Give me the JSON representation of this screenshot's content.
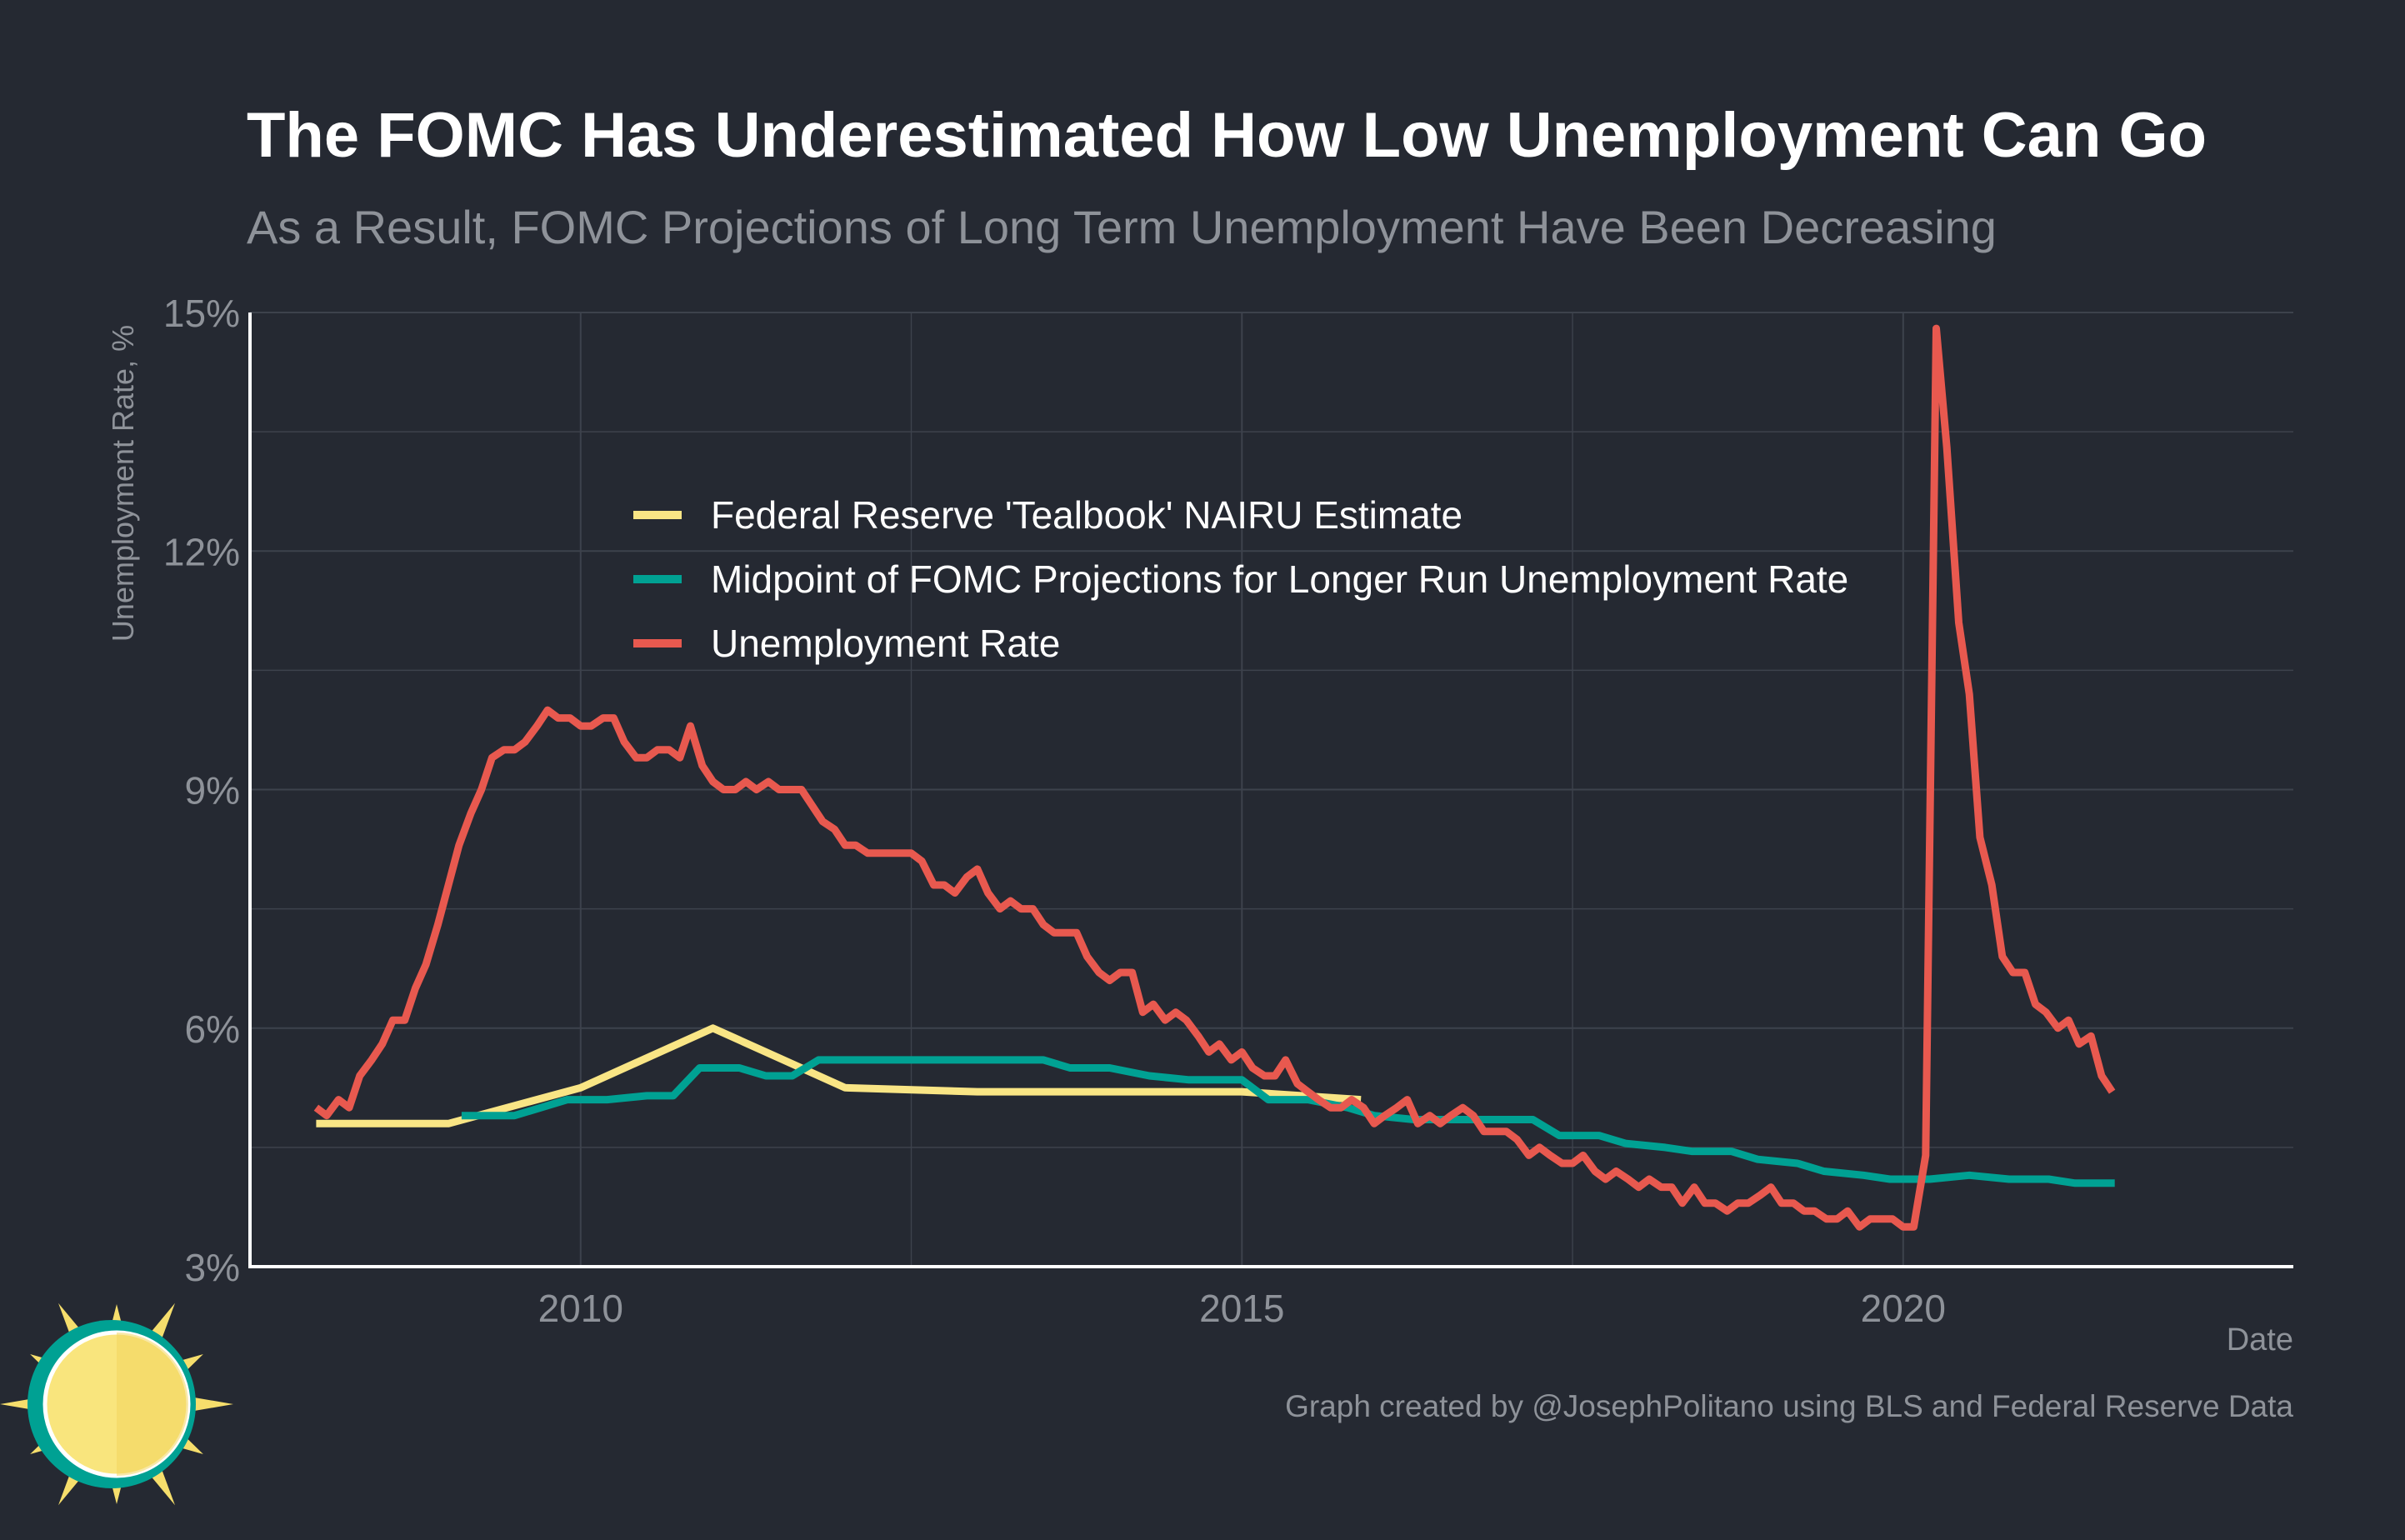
{
  "title": "The FOMC Has Underestimated How Low Unemployment Can Go",
  "subtitle": "As a Result, FOMC Projections of Long Term Unemployment Have Been Decreasing",
  "credit": "Graph created by @JosephPolitano using BLS and Federal Reserve Data",
  "colors": {
    "background": "#252932",
    "grid": "#3d424c",
    "axis": "#ffffff",
    "text_muted": "#8e9299",
    "title": "#ffffff",
    "tealbook": "#f9e585",
    "fomc": "#00a193",
    "unemployment": "#e8594f"
  },
  "logo": {
    "name": "sun-logo-icon"
  },
  "chart_data": {
    "type": "line",
    "title": "The FOMC Has Underestimated How Low Unemployment Can Go",
    "subtitle": "As a Result, FOMC Projections of Long Term Unemployment Have Been Decreasing",
    "xlabel": "Date",
    "ylabel": "Unemployment Rate, %",
    "xlim": [
      2007.5,
      2022.95
    ],
    "ylim": [
      3,
      15
    ],
    "x_ticks": [
      2010,
      2015,
      2020
    ],
    "x_tick_labels": [
      "2010",
      "2015",
      "2020"
    ],
    "y_ticks": [
      3,
      6,
      9,
      12,
      15
    ],
    "y_tick_labels": [
      "3%",
      "6%",
      "9%",
      "12%",
      "15%"
    ],
    "grid": true,
    "legend_position": "top-center",
    "series": [
      {
        "name": "Federal Reserve 'Tealbook' NAIRU Estimate",
        "color": "#f9e585",
        "points": [
          [
            2008.0,
            4.8
          ],
          [
            2009.0,
            4.8
          ],
          [
            2010.0,
            5.25
          ],
          [
            2011.0,
            6.0
          ],
          [
            2012.0,
            5.25
          ],
          [
            2013.0,
            5.2
          ],
          [
            2014.0,
            5.2
          ],
          [
            2015.0,
            5.2
          ],
          [
            2015.9,
            5.1
          ]
        ]
      },
      {
        "name": "Midpoint of FOMC Projections for Longer Run Unemployment Rate",
        "color": "#00a193",
        "points": [
          [
            2009.1,
            4.9
          ],
          [
            2009.5,
            4.9
          ],
          [
            2009.9,
            5.1
          ],
          [
            2010.2,
            5.1
          ],
          [
            2010.5,
            5.15
          ],
          [
            2010.7,
            5.15
          ],
          [
            2010.9,
            5.5
          ],
          [
            2011.2,
            5.5
          ],
          [
            2011.4,
            5.4
          ],
          [
            2011.6,
            5.4
          ],
          [
            2011.8,
            5.6
          ],
          [
            2012.2,
            5.6
          ],
          [
            2012.6,
            5.6
          ],
          [
            2013.0,
            5.6
          ],
          [
            2013.5,
            5.6
          ],
          [
            2013.7,
            5.5
          ],
          [
            2014.0,
            5.5
          ],
          [
            2014.3,
            5.4
          ],
          [
            2014.6,
            5.35
          ],
          [
            2014.9,
            5.35
          ],
          [
            2015.0,
            5.35
          ],
          [
            2015.2,
            5.1
          ],
          [
            2015.5,
            5.1
          ],
          [
            2015.8,
            5.0
          ],
          [
            2016.0,
            4.9
          ],
          [
            2016.3,
            4.85
          ],
          [
            2016.6,
            4.85
          ],
          [
            2016.9,
            4.85
          ],
          [
            2017.2,
            4.85
          ],
          [
            2017.4,
            4.65
          ],
          [
            2017.7,
            4.65
          ],
          [
            2017.9,
            4.55
          ],
          [
            2018.2,
            4.5
          ],
          [
            2018.4,
            4.45
          ],
          [
            2018.7,
            4.45
          ],
          [
            2018.9,
            4.35
          ],
          [
            2019.2,
            4.3
          ],
          [
            2019.4,
            4.2
          ],
          [
            2019.7,
            4.15
          ],
          [
            2019.9,
            4.1
          ],
          [
            2020.2,
            4.1
          ],
          [
            2020.5,
            4.15
          ],
          [
            2020.8,
            4.1
          ],
          [
            2021.1,
            4.1
          ],
          [
            2021.3,
            4.05
          ],
          [
            2021.6,
            4.05
          ]
        ]
      },
      {
        "name": "Unemployment Rate",
        "color": "#e8594f",
        "points": [
          [
            2008.0,
            5.0
          ],
          [
            2008.08,
            4.9
          ],
          [
            2008.17,
            5.1
          ],
          [
            2008.25,
            5.0
          ],
          [
            2008.33,
            5.4
          ],
          [
            2008.42,
            5.6
          ],
          [
            2008.5,
            5.8
          ],
          [
            2008.58,
            6.1
          ],
          [
            2008.67,
            6.1
          ],
          [
            2008.75,
            6.5
          ],
          [
            2008.83,
            6.8
          ],
          [
            2008.92,
            7.3
          ],
          [
            2009.0,
            7.8
          ],
          [
            2009.08,
            8.3
          ],
          [
            2009.17,
            8.7
          ],
          [
            2009.25,
            9.0
          ],
          [
            2009.33,
            9.4
          ],
          [
            2009.42,
            9.5
          ],
          [
            2009.5,
            9.5
          ],
          [
            2009.58,
            9.6
          ],
          [
            2009.67,
            9.8
          ],
          [
            2009.75,
            10.0
          ],
          [
            2009.83,
            9.9
          ],
          [
            2009.92,
            9.9
          ],
          [
            2010.0,
            9.8
          ],
          [
            2010.08,
            9.8
          ],
          [
            2010.17,
            9.9
          ],
          [
            2010.25,
            9.9
          ],
          [
            2010.33,
            9.6
          ],
          [
            2010.42,
            9.4
          ],
          [
            2010.5,
            9.4
          ],
          [
            2010.58,
            9.5
          ],
          [
            2010.67,
            9.5
          ],
          [
            2010.75,
            9.4
          ],
          [
            2010.83,
            9.8
          ],
          [
            2010.92,
            9.3
          ],
          [
            2011.0,
            9.1
          ],
          [
            2011.08,
            9.0
          ],
          [
            2011.17,
            9.0
          ],
          [
            2011.25,
            9.1
          ],
          [
            2011.33,
            9.0
          ],
          [
            2011.42,
            9.1
          ],
          [
            2011.5,
            9.0
          ],
          [
            2011.58,
            9.0
          ],
          [
            2011.67,
            9.0
          ],
          [
            2011.75,
            8.8
          ],
          [
            2011.83,
            8.6
          ],
          [
            2011.92,
            8.5
          ],
          [
            2012.0,
            8.3
          ],
          [
            2012.08,
            8.3
          ],
          [
            2012.17,
            8.2
          ],
          [
            2012.25,
            8.2
          ],
          [
            2012.33,
            8.2
          ],
          [
            2012.42,
            8.2
          ],
          [
            2012.5,
            8.2
          ],
          [
            2012.58,
            8.1
          ],
          [
            2012.67,
            7.8
          ],
          [
            2012.75,
            7.8
          ],
          [
            2012.83,
            7.7
          ],
          [
            2012.92,
            7.9
          ],
          [
            2013.0,
            8.0
          ],
          [
            2013.08,
            7.7
          ],
          [
            2013.17,
            7.5
          ],
          [
            2013.25,
            7.6
          ],
          [
            2013.33,
            7.5
          ],
          [
            2013.42,
            7.5
          ],
          [
            2013.5,
            7.3
          ],
          [
            2013.58,
            7.2
          ],
          [
            2013.67,
            7.2
          ],
          [
            2013.75,
            7.2
          ],
          [
            2013.83,
            6.9
          ],
          [
            2013.92,
            6.7
          ],
          [
            2014.0,
            6.6
          ],
          [
            2014.08,
            6.7
          ],
          [
            2014.17,
            6.7
          ],
          [
            2014.25,
            6.2
          ],
          [
            2014.33,
            6.3
          ],
          [
            2014.42,
            6.1
          ],
          [
            2014.5,
            6.2
          ],
          [
            2014.58,
            6.1
          ],
          [
            2014.67,
            5.9
          ],
          [
            2014.75,
            5.7
          ],
          [
            2014.83,
            5.8
          ],
          [
            2014.92,
            5.6
          ],
          [
            2015.0,
            5.7
          ],
          [
            2015.08,
            5.5
          ],
          [
            2015.17,
            5.4
          ],
          [
            2015.25,
            5.4
          ],
          [
            2015.33,
            5.6
          ],
          [
            2015.42,
            5.3
          ],
          [
            2015.5,
            5.2
          ],
          [
            2015.58,
            5.1
          ],
          [
            2015.67,
            5.0
          ],
          [
            2015.75,
            5.0
          ],
          [
            2015.83,
            5.1
          ],
          [
            2015.92,
            5.0
          ],
          [
            2016.0,
            4.8
          ],
          [
            2016.08,
            4.9
          ],
          [
            2016.17,
            5.0
          ],
          [
            2016.25,
            5.1
          ],
          [
            2016.33,
            4.8
          ],
          [
            2016.42,
            4.9
          ],
          [
            2016.5,
            4.8
          ],
          [
            2016.58,
            4.9
          ],
          [
            2016.67,
            5.0
          ],
          [
            2016.75,
            4.9
          ],
          [
            2016.83,
            4.7
          ],
          [
            2016.92,
            4.7
          ],
          [
            2017.0,
            4.7
          ],
          [
            2017.08,
            4.6
          ],
          [
            2017.17,
            4.4
          ],
          [
            2017.25,
            4.5
          ],
          [
            2017.33,
            4.4
          ],
          [
            2017.42,
            4.3
          ],
          [
            2017.5,
            4.3
          ],
          [
            2017.58,
            4.4
          ],
          [
            2017.67,
            4.2
          ],
          [
            2017.75,
            4.1
          ],
          [
            2017.83,
            4.2
          ],
          [
            2017.92,
            4.1
          ],
          [
            2018.0,
            4.0
          ],
          [
            2018.08,
            4.1
          ],
          [
            2018.17,
            4.0
          ],
          [
            2018.25,
            4.0
          ],
          [
            2018.33,
            3.8
          ],
          [
            2018.42,
            4.0
          ],
          [
            2018.5,
            3.8
          ],
          [
            2018.58,
            3.8
          ],
          [
            2018.67,
            3.7
          ],
          [
            2018.75,
            3.8
          ],
          [
            2018.83,
            3.8
          ],
          [
            2018.92,
            3.9
          ],
          [
            2019.0,
            4.0
          ],
          [
            2019.08,
            3.8
          ],
          [
            2019.17,
            3.8
          ],
          [
            2019.25,
            3.7
          ],
          [
            2019.33,
            3.7
          ],
          [
            2019.42,
            3.6
          ],
          [
            2019.5,
            3.6
          ],
          [
            2019.58,
            3.7
          ],
          [
            2019.67,
            3.5
          ],
          [
            2019.75,
            3.6
          ],
          [
            2019.83,
            3.6
          ],
          [
            2019.92,
            3.6
          ],
          [
            2020.0,
            3.5
          ],
          [
            2020.08,
            3.5
          ],
          [
            2020.17,
            4.4
          ],
          [
            2020.25,
            14.8
          ],
          [
            2020.33,
            13.3
          ],
          [
            2020.42,
            11.1
          ],
          [
            2020.5,
            10.2
          ],
          [
            2020.58,
            8.4
          ],
          [
            2020.67,
            7.8
          ],
          [
            2020.75,
            6.9
          ],
          [
            2020.83,
            6.7
          ],
          [
            2020.92,
            6.7
          ],
          [
            2021.0,
            6.3
          ],
          [
            2021.08,
            6.2
          ],
          [
            2021.17,
            6.0
          ],
          [
            2021.25,
            6.1
          ],
          [
            2021.33,
            5.8
          ],
          [
            2021.42,
            5.9
          ],
          [
            2021.5,
            5.4
          ],
          [
            2021.58,
            5.2
          ]
        ]
      }
    ]
  }
}
